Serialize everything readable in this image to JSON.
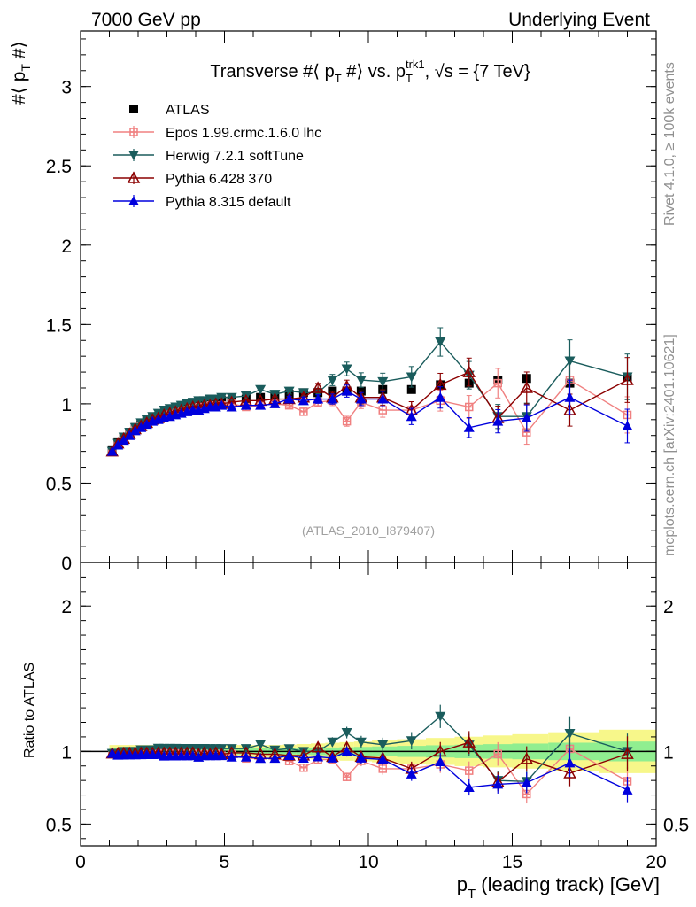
{
  "header": {
    "left": "7000 GeV pp",
    "right": "Underlying Event"
  },
  "side_labels": {
    "rivet": "Rivet 4.1.0, ≥ 100k events",
    "mcplots": "mcplots.cern.ch [arXiv:2401.10621]"
  },
  "chart_data": {
    "type": "scatter",
    "title": "Transverse #⟨ p_T #⟩ vs. p_T^trk1, √s = {7 TeV}",
    "title_parts": {
      "a": "Transverse #⟨ p",
      "b": "T",
      "c": " #⟩ vs. p",
      "d": "T",
      "e": "trk1",
      "f": ", √s = {7 TeV}"
    },
    "ylabel_parts": {
      "a": "#⟨ p",
      "b": "T",
      "c": " #⟩"
    },
    "xlabel_parts": {
      "a": "p",
      "b": "T",
      "c": " (leading track) [GeV]"
    },
    "ratio_ylabel": "Ratio to ATLAS",
    "analysis_tag": "(ATLAS_2010_I879407)",
    "xlim": [
      0,
      20
    ],
    "ylim": [
      0,
      3.35
    ],
    "ratio_ylim": [
      0.35,
      2.3
    ],
    "x_ticks": [
      0,
      5,
      10,
      15,
      20
    ],
    "x_tick_labels": [
      "0",
      "5",
      "10",
      "15",
      "20"
    ],
    "y_ticks": [
      0,
      0.5,
      1,
      1.5,
      2,
      2.5,
      3
    ],
    "y_tick_labels": [
      "0",
      "0.5",
      "1",
      "1.5",
      "2",
      "2.5",
      "3"
    ],
    "ratio_y_ticks": [
      0.5,
      1,
      2
    ],
    "ratio_y_tick_labels": [
      "0.5",
      "1",
      "2"
    ],
    "x": [
      1.1,
      1.3,
      1.5,
      1.7,
      1.9,
      2.1,
      2.3,
      2.5,
      2.7,
      2.9,
      3.1,
      3.3,
      3.5,
      3.7,
      3.9,
      4.1,
      4.3,
      4.5,
      4.7,
      4.9,
      5.25,
      5.75,
      6.25,
      6.75,
      7.25,
      7.75,
      8.25,
      8.75,
      9.25,
      9.75,
      10.5,
      11.5,
      12.5,
      13.5,
      14.5,
      15.5,
      17.0,
      19.0
    ],
    "series": [
      {
        "name": "ATLAS",
        "color": "#000000",
        "marker": "square",
        "values": [
          0.71,
          0.76,
          0.79,
          0.82,
          0.85,
          0.87,
          0.89,
          0.91,
          0.92,
          0.94,
          0.95,
          0.96,
          0.97,
          0.98,
          0.99,
          1.0,
          1.0,
          1.01,
          1.01,
          1.02,
          1.02,
          1.03,
          1.04,
          1.05,
          1.06,
          1.07,
          1.07,
          1.08,
          1.08,
          1.08,
          1.09,
          1.09,
          1.12,
          1.13,
          1.15,
          1.16,
          1.13,
          1.17
        ]
      },
      {
        "name": "Epos 1.99.crmc.1.6.0 lhc",
        "color": "#f08080",
        "marker": "plus",
        "values": [
          0.7,
          0.75,
          0.78,
          0.81,
          0.84,
          0.86,
          0.88,
          0.9,
          0.91,
          0.93,
          0.94,
          0.95,
          0.96,
          0.96,
          0.97,
          0.98,
          0.98,
          0.99,
          0.99,
          0.99,
          1.0,
          0.98,
          0.99,
          1.0,
          0.99,
          0.95,
          1.01,
          1.02,
          0.89,
          1.01,
          0.96,
          0.96,
          1.02,
          0.98,
          1.13,
          0.82,
          1.15,
          0.93
        ]
      },
      {
        "name": "Herwig 7.2.1 softTune",
        "color": "#1a5c5c",
        "marker": "triangle-down",
        "values": [
          0.7,
          0.75,
          0.79,
          0.82,
          0.85,
          0.88,
          0.9,
          0.92,
          0.94,
          0.96,
          0.97,
          0.98,
          0.99,
          1.0,
          1.01,
          1.02,
          1.02,
          1.03,
          1.03,
          1.04,
          1.04,
          1.05,
          1.09,
          1.06,
          1.08,
          1.07,
          1.07,
          1.15,
          1.22,
          1.15,
          1.14,
          1.17,
          1.39,
          1.18,
          0.92,
          0.92,
          1.27,
          1.17
        ]
      },
      {
        "name": "Pythia 6.428 370",
        "color": "#8b0000",
        "marker": "triangle-up-open",
        "values": [
          0.7,
          0.75,
          0.78,
          0.81,
          0.84,
          0.86,
          0.88,
          0.9,
          0.91,
          0.93,
          0.94,
          0.95,
          0.96,
          0.97,
          0.98,
          0.98,
          0.99,
          0.99,
          1.0,
          1.0,
          1.01,
          1.02,
          1.02,
          1.03,
          1.03,
          1.04,
          1.1,
          1.04,
          1.11,
          1.04,
          1.04,
          0.96,
          1.12,
          1.2,
          0.91,
          1.1,
          0.96,
          1.15
        ]
      },
      {
        "name": "Pythia 8.315 default",
        "color": "#0000dd",
        "marker": "triangle-up",
        "values": [
          0.7,
          0.74,
          0.77,
          0.8,
          0.83,
          0.85,
          0.87,
          0.89,
          0.9,
          0.91,
          0.92,
          0.93,
          0.94,
          0.95,
          0.96,
          0.96,
          0.97,
          0.98,
          0.98,
          0.99,
          0.98,
          0.99,
          0.99,
          1.0,
          1.03,
          1.02,
          1.03,
          1.03,
          1.08,
          1.03,
          1.03,
          0.92,
          1.04,
          0.85,
          0.89,
          0.91,
          1.04,
          0.86
        ]
      }
    ]
  }
}
